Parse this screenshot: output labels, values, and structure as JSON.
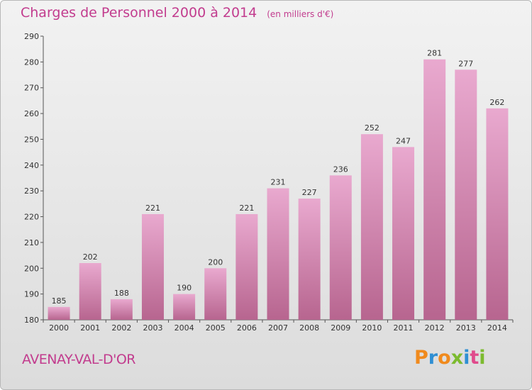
{
  "title": "Charges de Personnel 2000 à 2014",
  "subtitle": "(en milliers d'€)",
  "place": "AVENAY-VAL-D'OR",
  "logo": {
    "letters": [
      "P",
      "r",
      "o",
      "x",
      "i",
      "t",
      "i"
    ],
    "colors": [
      "#f08a1d",
      "#2f8fd3",
      "#f08a1d",
      "#7cbb2f",
      "#2f8fd3",
      "#e04a8c",
      "#7cbb2f"
    ]
  },
  "colors": {
    "bar": "#e09bc4",
    "bar_dark": "#b7658f",
    "accent": "#c23c8e"
  },
  "chart_data": {
    "type": "bar",
    "categories": [
      "2000",
      "2001",
      "2002",
      "2003",
      "2004",
      "2005",
      "2006",
      "2007",
      "2008",
      "2009",
      "2010",
      "2011",
      "2012",
      "2013",
      "2014"
    ],
    "values": [
      185,
      202,
      188,
      221,
      190,
      200,
      221,
      231,
      227,
      236,
      252,
      247,
      281,
      277,
      262
    ],
    "title": "Charges de Personnel 2000 à 2014",
    "subtitle": "(en milliers d'€)",
    "xlabel": "",
    "ylabel": "",
    "ylim": [
      180,
      290
    ],
    "yticks": [
      180,
      190,
      200,
      210,
      220,
      230,
      240,
      250,
      260,
      270,
      280,
      290
    ],
    "grid": false,
    "data_labels": true
  }
}
